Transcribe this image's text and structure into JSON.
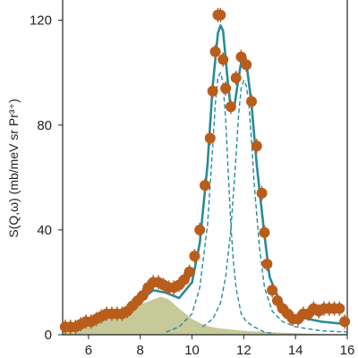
{
  "chart_data": {
    "type": "scatter",
    "ylabel": "S(Q,ω) (mb/meV sr Pr³⁺)",
    "xlabel": "",
    "xlim": [
      5,
      16
    ],
    "ylim": [
      0,
      125
    ],
    "xticks": [
      6,
      8,
      10,
      12,
      14,
      16
    ],
    "yticks": [
      0,
      40,
      80,
      120
    ],
    "grid": false,
    "colors": {
      "points": "#b85d1c",
      "fit": "#2a8a9c",
      "background_fill": "#c0c48e"
    },
    "series": [
      {
        "kind": "points",
        "x": [
          5.1,
          5.3,
          5.5,
          5.7,
          5.9,
          6.1,
          6.3,
          6.5,
          6.7,
          6.9,
          7.1,
          7.3,
          7.5,
          7.7,
          7.9,
          8.1,
          8.3,
          8.5,
          8.7,
          8.9,
          9.1,
          9.3,
          9.5,
          9.7,
          9.9,
          10.1,
          10.3,
          10.5,
          10.7,
          10.8,
          10.9,
          11.0,
          11.1,
          11.2,
          11.3,
          11.5,
          11.7,
          11.9,
          12.1,
          12.3,
          12.5,
          12.7,
          12.8,
          12.9,
          13.1,
          13.3,
          13.5,
          13.7,
          13.9,
          14.1,
          14.3,
          14.5,
          14.7,
          14.9,
          15.1,
          15.3,
          15.5,
          15.7,
          15.9
        ],
        "y": [
          3,
          3,
          3,
          4,
          5,
          5,
          6,
          7,
          8,
          8,
          8,
          8,
          9,
          11,
          13,
          15,
          18,
          20,
          20,
          19,
          18,
          18,
          19,
          21,
          24,
          30,
          40,
          57,
          75,
          93,
          108,
          122,
          122,
          105,
          94,
          87,
          98,
          106,
          103,
          89,
          72,
          54,
          39,
          27,
          17,
          13,
          10,
          8,
          6,
          6,
          8,
          8,
          10,
          9,
          10,
          10,
          10,
          10,
          5
        ]
      },
      {
        "kind": "fit-total",
        "x": [
          5.0,
          6.0,
          7.0,
          8.0,
          8.5,
          9.0,
          9.5,
          10.0,
          10.3,
          10.6,
          10.8,
          11.0,
          11.1,
          11.2,
          11.35,
          11.5,
          11.65,
          11.8,
          11.9,
          12.0,
          12.1,
          12.3,
          12.5,
          12.8,
          13.0,
          13.5,
          14.0,
          15.0,
          16.0
        ],
        "y": [
          3,
          4,
          8,
          13,
          17,
          16,
          14,
          20,
          35,
          65,
          95,
          115,
          118,
          116,
          100,
          86,
          88,
          98,
          104,
          107,
          104,
          88,
          65,
          38,
          22,
          10,
          7,
          5,
          4
        ]
      },
      {
        "kind": "fit-peak",
        "x": [
          9.0,
          9.5,
          10.0,
          10.3,
          10.6,
          10.8,
          10.9,
          11.0,
          11.1,
          11.2,
          11.3,
          11.4,
          11.5,
          11.6,
          11.7,
          11.9,
          12.1,
          12.4,
          12.8,
          13.2
        ],
        "y": [
          1,
          3,
          8,
          18,
          42,
          72,
          88,
          98,
          100,
          96,
          82,
          62,
          42,
          28,
          18,
          8,
          5,
          3,
          1,
          0.5
        ]
      },
      {
        "kind": "fit-peak",
        "x": [
          10.4,
          10.8,
          11.1,
          11.3,
          11.5,
          11.7,
          11.8,
          11.9,
          12.0,
          12.1,
          12.2,
          12.3,
          12.4,
          12.6,
          12.8,
          13.1,
          13.5,
          14.0,
          15.0,
          16.0
        ],
        "y": [
          3,
          6,
          12,
          22,
          40,
          68,
          84,
          94,
          97,
          95,
          88,
          74,
          58,
          34,
          18,
          9,
          5,
          3,
          1.5,
          1
        ]
      },
      {
        "kind": "background-fill",
        "x": [
          5.0,
          6.0,
          7.0,
          7.5,
          8.0,
          8.5,
          8.8,
          9.1,
          9.5,
          10.0,
          10.5,
          11.0,
          12.0,
          13.0,
          14.0,
          15.0,
          16.0
        ],
        "y": [
          3,
          4.5,
          7,
          9,
          11.5,
          13.5,
          14.5,
          13.5,
          10,
          6,
          3.5,
          2.5,
          1.5,
          1,
          0.6,
          0.3,
          0.2
        ]
      }
    ]
  }
}
